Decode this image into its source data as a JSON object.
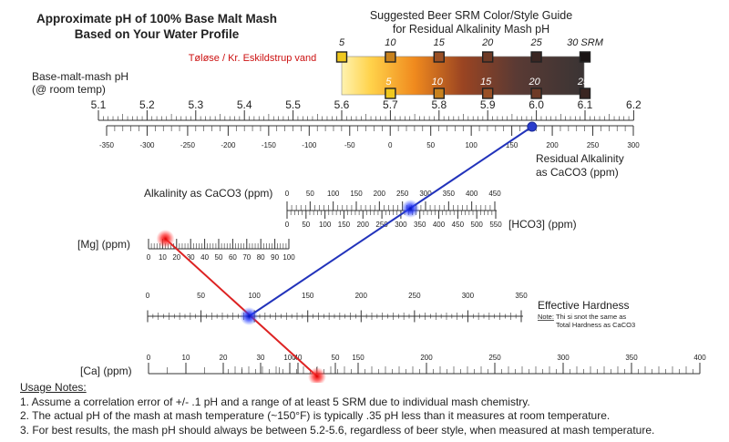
{
  "title": {
    "line1": "Approximate pH of 100% Base Malt Mash",
    "line2": "Based on Your Water Profile"
  },
  "srm_guide": {
    "title_line1": "Suggested Beer SRM Color/Style Guide",
    "title_line2": "for Residual Alkalinity Mash pH",
    "top_labels": [
      "5",
      "10",
      "15",
      "20",
      "25",
      "30 SRM"
    ],
    "top_ph": [
      5.6,
      5.7,
      5.8,
      5.9,
      6.0,
      6.1
    ],
    "bottom_labels": [
      "5",
      "10",
      "15",
      "20",
      "25"
    ],
    "bottom_ph": [
      5.7,
      5.8,
      5.9,
      6.0,
      6.1
    ],
    "colors": [
      "#f0c81e",
      "#c8821e",
      "#9a5026",
      "#6e3a26",
      "#3a2622",
      "#1a1414"
    ]
  },
  "water_profile": "Tøløse / Kr. Eskildstrup vand",
  "scales": {
    "ph": {
      "label_line1": "Base-malt-mash pH",
      "label_line2": "(@ room temp)",
      "ticks": [
        "5.1",
        "5.2",
        "5.3",
        "5.4",
        "5.5",
        "5.6",
        "5.7",
        "5.8",
        "5.9",
        "6.0",
        "6.1",
        "6.2"
      ]
    },
    "residual_alkalinity": {
      "label_line1": "Residual Alkalinity",
      "label_line2": "as CaCO3 (ppm)",
      "ticks": [
        "-350",
        "-300",
        "-250",
        "-200",
        "-150",
        "-100",
        "-50",
        "0",
        "50",
        "100",
        "150",
        "200",
        "250",
        "300"
      ]
    },
    "alkalinity": {
      "label": "Alkalinity as CaCO3 (ppm)",
      "ticks": [
        "0",
        "50",
        "100",
        "150",
        "200",
        "250",
        "300",
        "350",
        "400",
        "450"
      ]
    },
    "hco3": {
      "label": "[HCO3] (ppm)",
      "ticks": [
        "0",
        "50",
        "100",
        "150",
        "200",
        "250",
        "300",
        "350",
        "400",
        "450",
        "500",
        "550"
      ]
    },
    "mg": {
      "label": "[Mg] (ppm)",
      "ticks": [
        "0",
        "10",
        "20",
        "30",
        "40",
        "50",
        "60",
        "70",
        "80",
        "90",
        "100"
      ]
    },
    "effective_hardness": {
      "label": "Effective Hardness",
      "note_label": "Note:",
      "note_text1": "Thi si snot the same as",
      "note_text2": "Total Hardness as CaCO3",
      "ticks": [
        "0",
        "50",
        "100",
        "150",
        "200",
        "250",
        "300",
        "350"
      ]
    },
    "ca": {
      "label": "[Ca] (ppm)",
      "ticks": [
        "0",
        "10",
        "20",
        "30",
        "40",
        "50",
        "100",
        "150",
        "200",
        "250",
        "300",
        "350",
        "400"
      ]
    }
  },
  "readings": {
    "mg_ppm": 12,
    "ca_ppm": 120,
    "hco3_ppm": 325,
    "effective_hardness_ppm": 95,
    "residual_alkalinity_ppm": 175,
    "mash_ph": 5.98
  },
  "line_colors": {
    "alkalinity_line": "#2233bb",
    "hardness_line": "#dd2222"
  },
  "usage_notes": {
    "heading": "Usage Notes:",
    "items": [
      "1. Assume a correlation error of +/- .1 pH and a range of at least 5 SRM due to individual mash chemistry.",
      "2. The actual pH of the mash at mash temperature (~150°F) is typically .35 pH less than it measures at room temperature.",
      "3. For best results, the mash pH should always be between 5.2-5.6, regardless of beer style, when measured at mash temperature."
    ]
  }
}
